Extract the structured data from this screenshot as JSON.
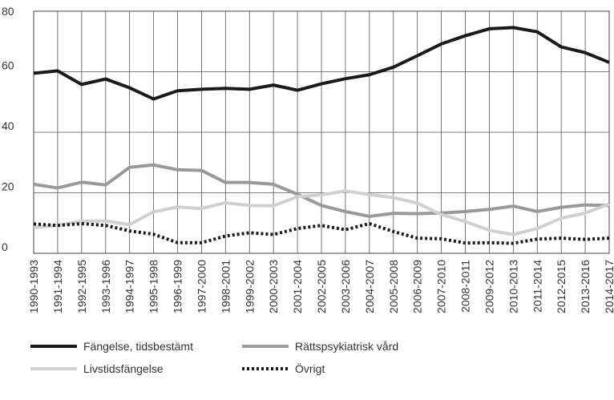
{
  "chart_data": {
    "type": "line",
    "categories": [
      "1990-1993",
      "1991-1994",
      "1992-1995",
      "1993-1996",
      "1994-1997",
      "1995-1998",
      "1996-1999",
      "1997-2000",
      "1998-2001",
      "1999-2002",
      "2000-2003",
      "2001-2004",
      "2002-2005",
      "2003-2006",
      "2004-2007",
      "2005-2008",
      "2006-2009",
      "2007-2010",
      "2008-2011",
      "2009-2012",
      "2010-2013",
      "2011-2014",
      "2012-2015",
      "2013-2016",
      "2014-2017"
    ],
    "series": [
      {
        "name": "Fängelse, tidsbestämt",
        "color": "#1a1a1a",
        "line_style": "solid",
        "values": [
          59.5,
          60.3,
          55.8,
          57.6,
          54.7,
          51,
          53.7,
          54.2,
          54.5,
          54.2,
          55.6,
          53.9,
          56,
          57.7,
          59,
          61.5,
          65.3,
          69.2,
          71.9,
          74.2,
          74.6,
          73.2,
          68.2,
          66.3,
          63.1
        ]
      },
      {
        "name": "Rättspsykiatrisk vård",
        "color": "#999999",
        "line_style": "solid",
        "values": [
          22.8,
          21.6,
          23.5,
          22.6,
          28.4,
          29.2,
          27.6,
          27.4,
          23.4,
          23.4,
          22.8,
          19.5,
          15.8,
          13.8,
          12.2,
          13.2,
          13.1,
          13.3,
          13.8,
          14.5,
          15.6,
          13.8,
          15.2,
          16,
          15.8
        ]
      },
      {
        "name": "Livstidsfängelse",
        "color": "#d0d0d0",
        "line_style": "solid",
        "values": [
          8.5,
          9.2,
          10.6,
          10.7,
          9.5,
          13.7,
          15.3,
          14.8,
          16.7,
          15.8,
          15.7,
          18.7,
          19.3,
          20.6,
          19.4,
          18.4,
          16.6,
          12.8,
          10.5,
          7.6,
          6.2,
          8.2,
          11.6,
          13.3,
          16.3
        ]
      },
      {
        "name": "Övrigt",
        "color": "#1a1a1a",
        "line_style": "dotted",
        "values": [
          9.7,
          9.2,
          9.8,
          9.2,
          7.4,
          6.3,
          3.5,
          3.5,
          5.7,
          6.8,
          6.2,
          8.2,
          9.2,
          7.8,
          9.8,
          7.2,
          5,
          4.8,
          3.4,
          3.5,
          3.3,
          4.7,
          5,
          4.6,
          5
        ]
      }
    ],
    "ylim": [
      0,
      80
    ],
    "yticks": [
      0,
      20,
      40,
      60,
      80
    ],
    "grid": true,
    "legend": "bottom"
  }
}
